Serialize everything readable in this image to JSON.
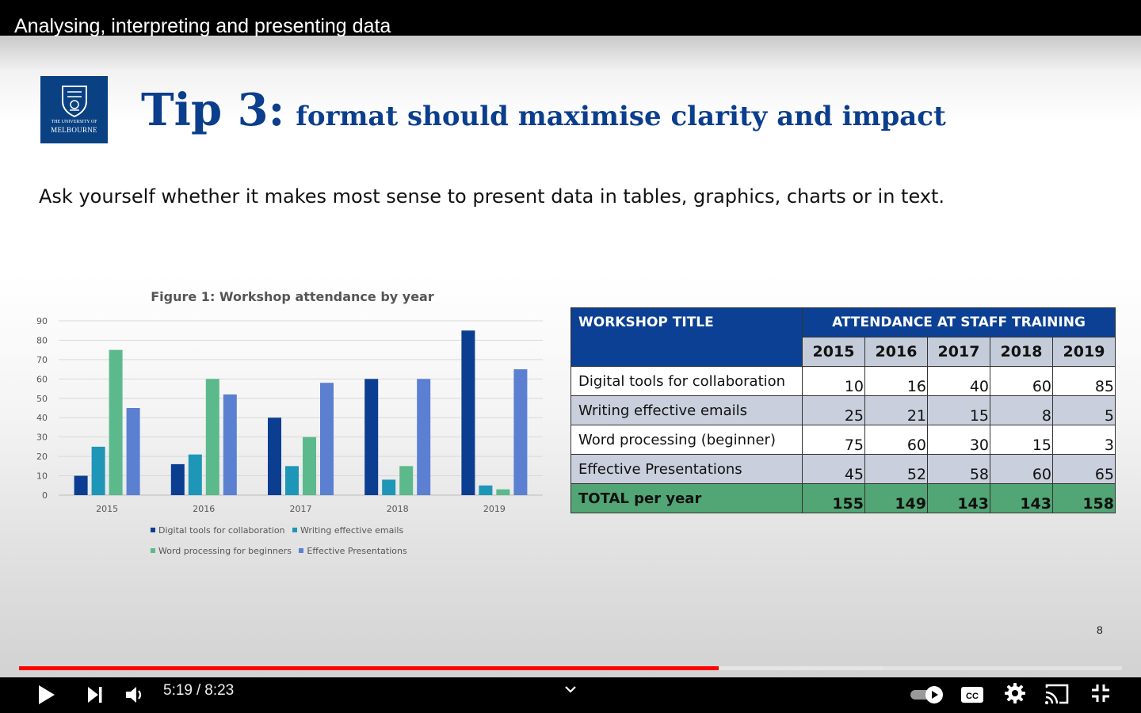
{
  "video": {
    "title": "Analysing, interpreting and presenting data",
    "current_time": "5:19",
    "time_separator": "/",
    "duration": "8:23",
    "progress_fraction": 0.634,
    "buffered_fraction": 0.783,
    "accent_color": "#ff0000"
  },
  "slide": {
    "logo": {
      "line1": "THE UNIVERSITY OF",
      "line2": "MELBOURNE"
    },
    "title_main": "Tip 3:",
    "title_sub": "format should maximise clarity and impact",
    "subtitle": "Ask yourself whether it makes most sense to present data in tables, graphics, charts or in text.",
    "page_number": "8",
    "table": {
      "col1_header": "WORKSHOP TITLE",
      "group_header": "ATTENDANCE AT STAFF TRAINING",
      "years": [
        "2015",
        "2016",
        "2017",
        "2018",
        "2019"
      ],
      "rows": [
        {
          "label": "Digital tools for collaboration",
          "values": [
            "10",
            "16",
            "40",
            "60",
            "85"
          ]
        },
        {
          "label": "Writing effective emails",
          "values": [
            "25",
            "21",
            "15",
            "8",
            "5"
          ]
        },
        {
          "label": "Word processing (beginner)",
          "values": [
            "75",
            "60",
            "30",
            "15",
            "3"
          ]
        },
        {
          "label": "Effective Presentations",
          "values": [
            "45",
            "52",
            "58",
            "60",
            "65"
          ]
        }
      ],
      "total": {
        "label": "TOTAL  per year",
        "values": [
          "155",
          "149",
          "143",
          "143",
          "158"
        ]
      }
    }
  },
  "chart_data": {
    "type": "bar",
    "title": "Figure 1: Workshop attendance by year",
    "categories": [
      "2015",
      "2016",
      "2017",
      "2018",
      "2019"
    ],
    "series": [
      {
        "name": "Digital tools for collaboration",
        "color": "#0b3d91",
        "values": [
          10,
          16,
          40,
          60,
          85
        ]
      },
      {
        "name": "Writing effective emails",
        "color": "#1e96b7",
        "values": [
          25,
          21,
          15,
          8,
          5
        ]
      },
      {
        "name": "Word processing for beginners",
        "color": "#5bb98b",
        "values": [
          75,
          60,
          30,
          15,
          3
        ]
      },
      {
        "name": "Effective Presentations",
        "color": "#5b7fd1",
        "values": [
          45,
          52,
          58,
          60,
          65
        ]
      }
    ],
    "yticks": [
      0,
      10,
      20,
      30,
      40,
      50,
      60,
      70,
      80,
      90
    ],
    "ylim": [
      0,
      90
    ],
    "xlabel": "",
    "ylabel": "",
    "grid": true,
    "legend_position": "bottom"
  },
  "controls": {
    "play_icon": "play-icon",
    "next_icon": "skip-next-icon",
    "volume_icon": "volume-icon",
    "chevron_icon": "chevron-down-icon",
    "autoplay_icon": "autoplay-toggle-icon",
    "cc_icon": "closed-captions-icon",
    "settings_icon": "gear-icon",
    "cast_icon": "cast-icon",
    "fullscreen_icon": "exit-fullscreen-icon"
  }
}
